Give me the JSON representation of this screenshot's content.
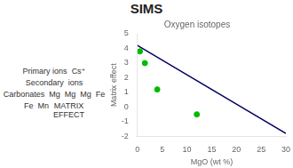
{
  "chart_data": {
    "type": "scatter",
    "title": "SIMS",
    "subtitle": "Oxygen isotopes",
    "x_label": "MgO (wt %)",
    "y_label": "Matrix effect",
    "annotations": [
      "Primary ions",
      "Cs⁺",
      "Secondary",
      "ions",
      "Carbonates",
      "Mg",
      "Mg",
      "Mg",
      "Fe",
      "Fe",
      "Mn",
      "MATRIX\nEFFECT"
    ],
    "series": [
      {
        "type": "scatter",
        "color": "#00bb00",
        "x": [
          0.5,
          1.5,
          4,
          12
        ],
        "values": [
          3.8,
          3.0,
          1.2,
          -0.5
        ]
      },
      {
        "type": "line",
        "color": "#000060",
        "x": [
          0,
          30
        ],
        "values": [
          4.2,
          -1.8
        ]
      }
    ],
    "xlim": [
      0,
      30
    ],
    "xticks": [
      0,
      5,
      10,
      15,
      20,
      25,
      30
    ],
    "ylim": [
      -2,
      5
    ],
    "yticks": [
      -2,
      -1,
      0,
      1,
      2,
      3,
      4,
      5
    ],
    "grid": false
  }
}
